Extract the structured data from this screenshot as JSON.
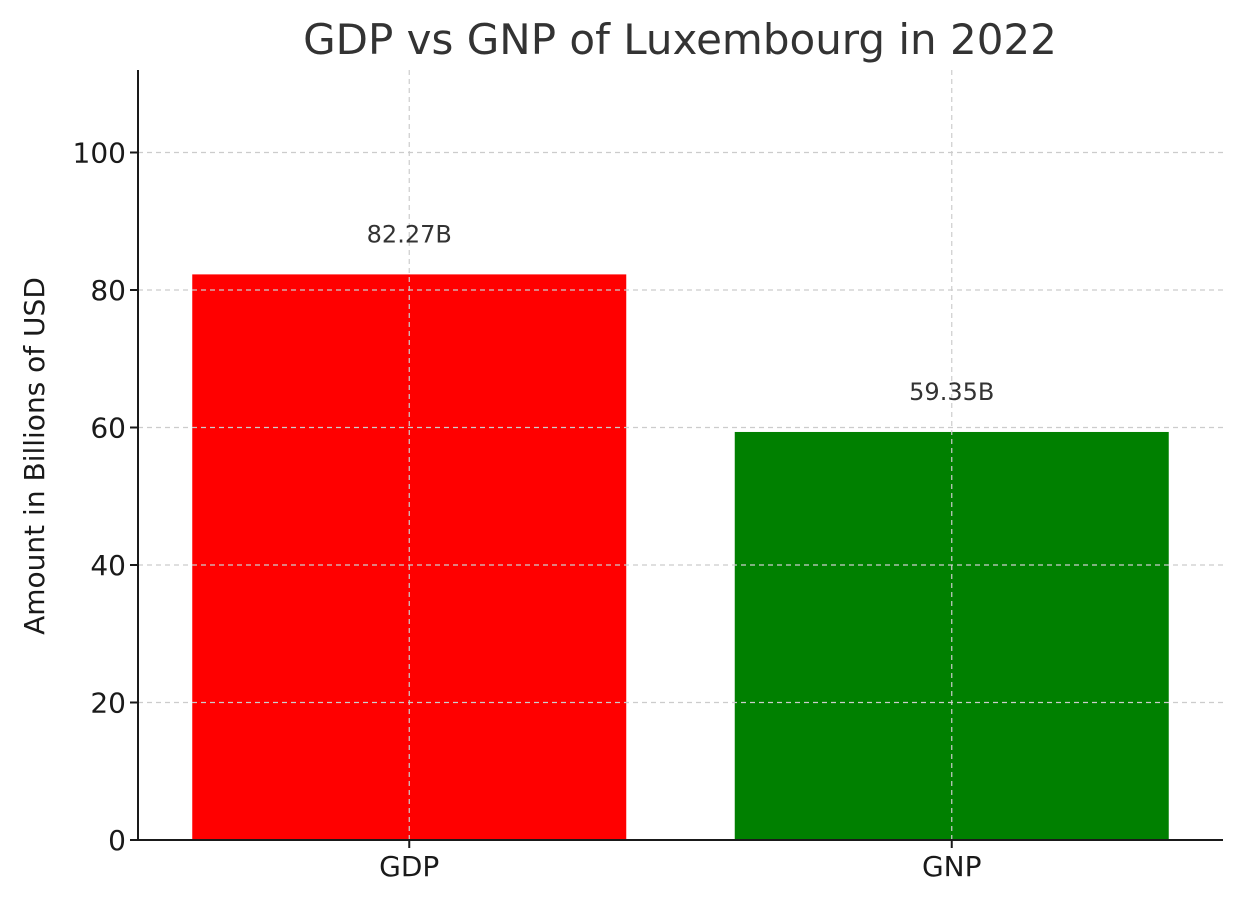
{
  "chart_data": {
    "type": "bar",
    "title": "GDP vs GNP of Luxembourg in 2022",
    "xlabel": "",
    "ylabel": "Amount in Billions of USD",
    "categories": [
      "GDP",
      "GNP"
    ],
    "values": [
      82.27,
      59.35
    ],
    "value_labels": [
      "82.27B",
      "59.35B"
    ],
    "colors": [
      "#ff0000",
      "#008000"
    ],
    "ylim": [
      0,
      112
    ],
    "yticks": [
      0,
      20,
      40,
      60,
      80,
      100
    ],
    "grid": true,
    "legend": "none"
  }
}
